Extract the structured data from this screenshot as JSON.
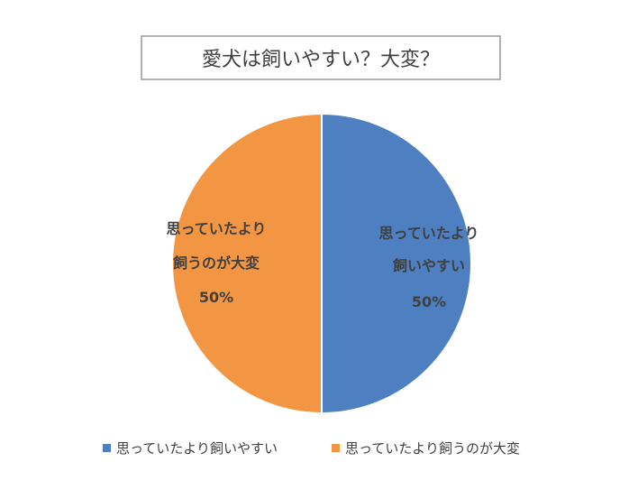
{
  "chart_data": {
    "type": "pie",
    "title": "愛犬は飼いやすい？大変？",
    "slices": [
      {
        "label_lines": [
          "思っていたより",
          "飼いやすい"
        ],
        "legend": "思っていたより飼いやすい",
        "value": 50,
        "value_label": "50%",
        "color": "#4e7fc0"
      },
      {
        "label_lines": [
          "思っていたより",
          "飼うのが大変"
        ],
        "legend": "思っていたより飼うのが大変",
        "value": 50,
        "value_label": "50%",
        "color": "#f39644"
      }
    ],
    "legend_position": "bottom"
  }
}
